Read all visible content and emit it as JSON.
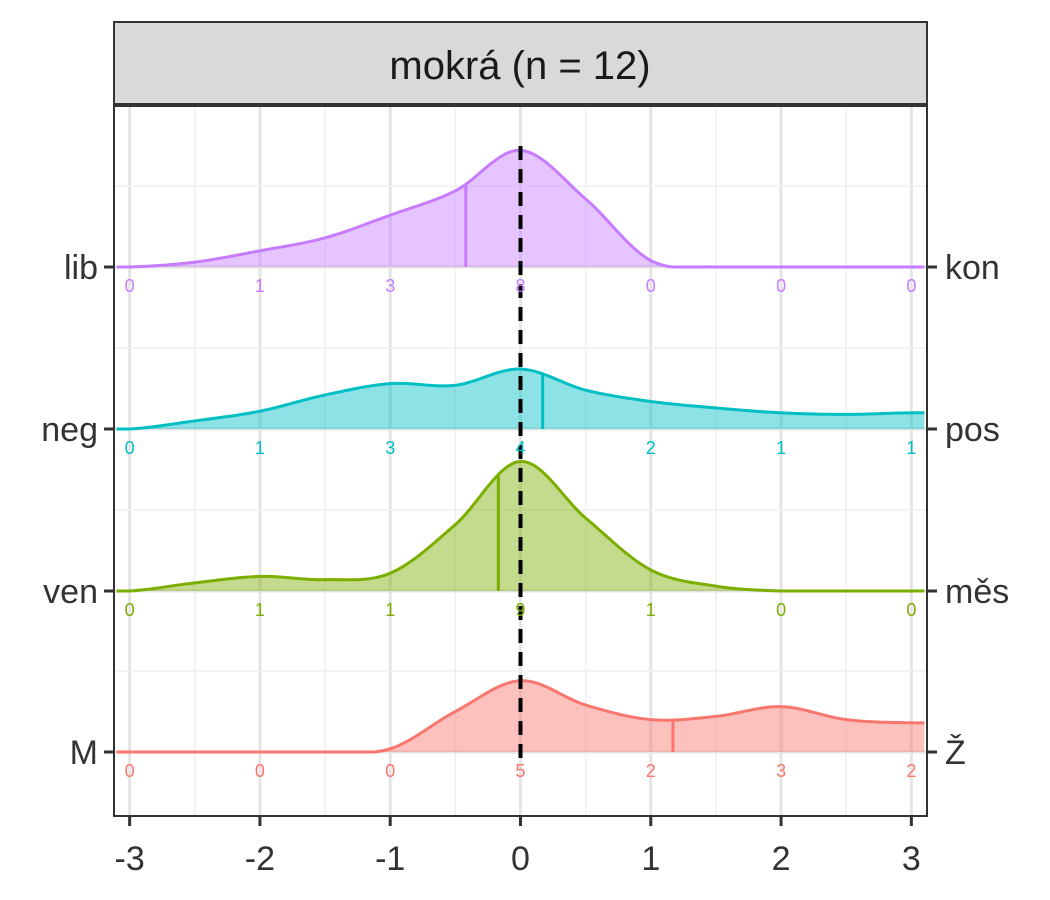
{
  "chart_data": {
    "type": "ridgeline-density",
    "title": "mokrá (n = 12)",
    "xlim": [
      -3.12,
      3.12
    ],
    "x_ticks": [
      {
        "value": -3,
        "label": "-3"
      },
      {
        "value": -2,
        "label": "-2"
      },
      {
        "value": -1,
        "label": "-1"
      },
      {
        "value": 0,
        "label": "0"
      },
      {
        "value": 1,
        "label": "1"
      },
      {
        "value": 2,
        "label": "2"
      },
      {
        "value": 3,
        "label": "3"
      }
    ],
    "reference_line_x": 0,
    "density_x": [
      -3.0,
      -2.5,
      -2.0,
      -1.5,
      -1.0,
      -0.5,
      0.0,
      0.5,
      1.0,
      1.5,
      2.0,
      2.5,
      3.0
    ],
    "count_x": [
      -3,
      -2,
      -1,
      0,
      1,
      2,
      3
    ],
    "series": [
      {
        "name": "lib–kon",
        "left_label": "lib",
        "right_label": "kon",
        "color": "#C77CFF",
        "counts": [
          0,
          1,
          3,
          8,
          0,
          0,
          0
        ],
        "mean": -0.42,
        "density_peak": 0.72,
        "density": [
          0.0,
          0.03,
          0.1,
          0.18,
          0.32,
          0.47,
          0.72,
          0.42,
          0.04,
          0.0,
          0.0,
          0.0,
          0.0
        ]
      },
      {
        "name": "neg–pos",
        "left_label": "neg",
        "right_label": "pos",
        "color": "#00BFC4",
        "counts": [
          0,
          1,
          3,
          4,
          2,
          1,
          1
        ],
        "mean": 0.17,
        "density_peak": 0.37,
        "density": [
          0.0,
          0.05,
          0.11,
          0.21,
          0.28,
          0.27,
          0.37,
          0.24,
          0.17,
          0.13,
          0.1,
          0.09,
          0.1
        ]
      },
      {
        "name": "ven–měs",
        "left_label": "ven",
        "right_label": "měs",
        "color": "#7CAE00",
        "counts": [
          0,
          1,
          1,
          9,
          1,
          0,
          0
        ],
        "mean": -0.17,
        "density_peak": 0.8,
        "density": [
          0.0,
          0.05,
          0.09,
          0.07,
          0.11,
          0.41,
          0.8,
          0.45,
          0.13,
          0.03,
          0.0,
          0.0,
          0.0
        ]
      },
      {
        "name": "M–Ž",
        "left_label": "M",
        "right_label": "Ž",
        "color": "#F8766D",
        "counts": [
          0,
          0,
          0,
          5,
          2,
          3,
          2
        ],
        "mean": 1.17,
        "density_peak": 0.44,
        "density": [
          0.0,
          0.0,
          0.0,
          0.0,
          0.02,
          0.25,
          0.44,
          0.29,
          0.2,
          0.22,
          0.28,
          0.2,
          0.18
        ]
      }
    ]
  }
}
